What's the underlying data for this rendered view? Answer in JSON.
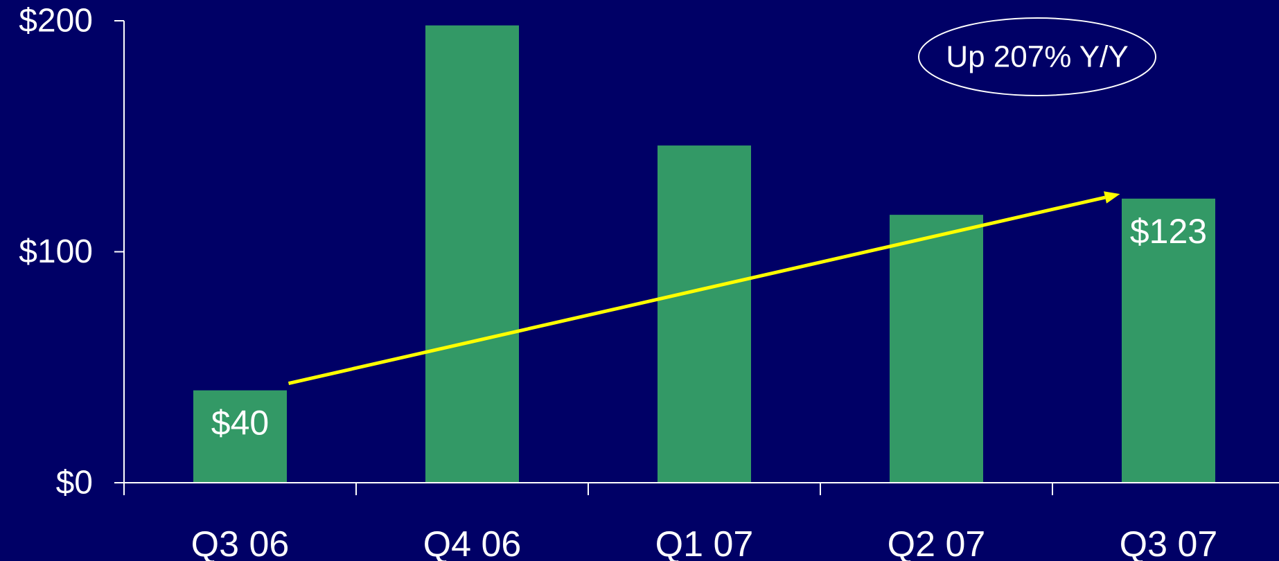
{
  "chart_data": {
    "type": "bar",
    "categories": [
      "Q3 06",
      "Q4 06",
      "Q1 07",
      "Q2 07",
      "Q3 07"
    ],
    "values": [
      40,
      198,
      146,
      116,
      123
    ],
    "data_labels": [
      "$40",
      "",
      "",
      "",
      "$123"
    ],
    "y_ticks": [
      {
        "value": 0,
        "label": "$0"
      },
      {
        "value": 100,
        "label": "$100"
      },
      {
        "value": 200,
        "label": "$200"
      }
    ],
    "ylim": [
      0,
      200
    ],
    "title": "",
    "xlabel": "",
    "ylabel": "",
    "grid": false,
    "annotation": {
      "text": "Up 207% Y/Y",
      "arrow_from_category": "Q3 06",
      "arrow_to_category": "Q3 07",
      "arrow_from_value": 43,
      "arrow_to_value": 125
    },
    "colors": {
      "background": "#000066",
      "bar": "#339966",
      "axis": "#ffffff",
      "text": "#ffffff",
      "arrow": "#ffff00"
    }
  }
}
